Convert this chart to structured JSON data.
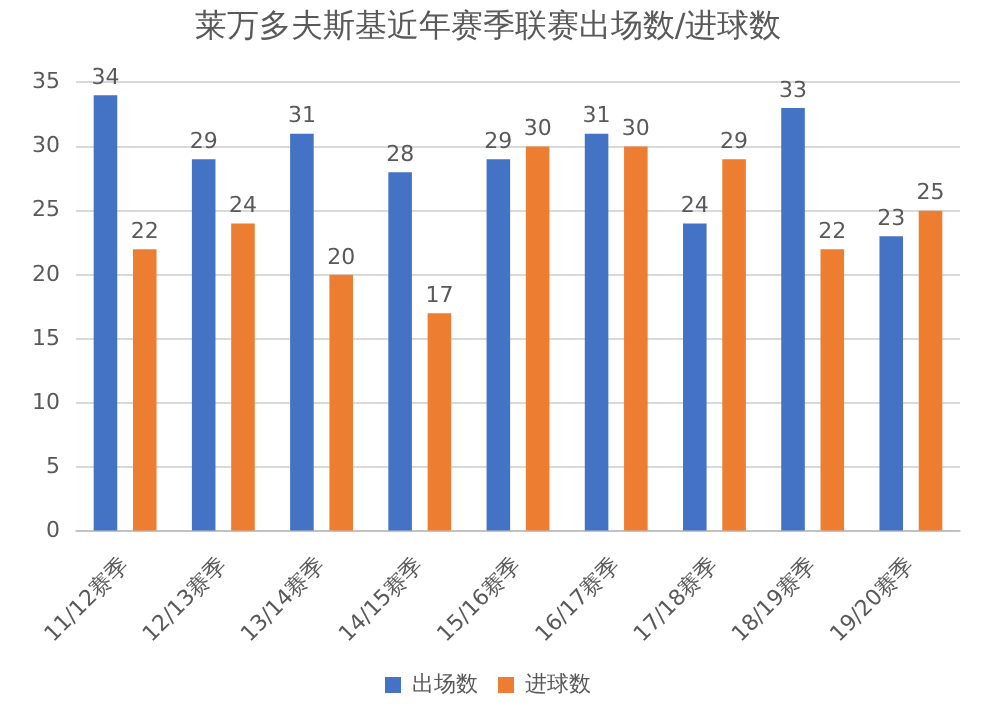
{
  "chart_data": {
    "type": "bar",
    "title": "莱万多夫斯基近年赛季联赛出场数/进球数",
    "categories": [
      "11/12赛季",
      "12/13赛季",
      "13/14赛季",
      "14/15赛季",
      "15/16赛季",
      "16/17赛季",
      "17/18赛季",
      "18/19赛季",
      "19/20赛季"
    ],
    "series": [
      {
        "name": "出场数",
        "color": "#4472c4",
        "values": [
          34,
          29,
          31,
          28,
          29,
          31,
          24,
          33,
          23
        ]
      },
      {
        "name": "进球数",
        "color": "#ed7d31",
        "values": [
          22,
          24,
          20,
          17,
          30,
          30,
          29,
          22,
          25
        ]
      }
    ],
    "ylim": [
      0,
      35
    ],
    "yticks": [
      0,
      5,
      10,
      15,
      20,
      25,
      30,
      35
    ],
    "grid": "y",
    "legend": "bottom",
    "data_labels": true
  }
}
